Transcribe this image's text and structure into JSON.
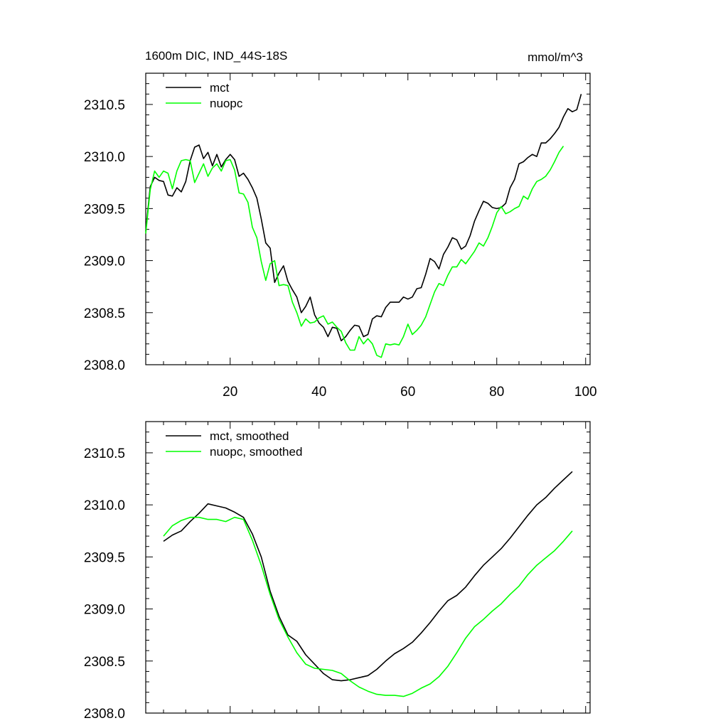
{
  "colors": {
    "mct": "#000000",
    "nuopc": "#00ff00",
    "axes": "#000000",
    "background": "#ffffff"
  },
  "chart_data": [
    {
      "type": "line",
      "title": "1600m DIC, IND_44S-18S",
      "units": "mmol/m^3",
      "xlabel": "",
      "ylabel": "",
      "xlim": [
        1,
        101
      ],
      "ylim": [
        2308.0,
        2310.8
      ],
      "xticks": [
        20,
        40,
        60,
        80,
        100
      ],
      "xtick_labels": [
        "20",
        "40",
        "60",
        "80",
        "100"
      ],
      "yticks": [
        2308.0,
        2308.5,
        2309.0,
        2309.5,
        2310.0,
        2310.5
      ],
      "ytick_labels": [
        "2308.0",
        "2308.5",
        "2309.0",
        "2309.5",
        "2310.0",
        "2310.5"
      ],
      "grid": false,
      "legend": "top-left",
      "series": [
        {
          "name": "mct",
          "color": "#000000",
          "x": [
            1,
            2,
            3,
            4,
            5,
            6,
            7,
            8,
            9,
            10,
            11,
            12,
            13,
            14,
            15,
            16,
            17,
            18,
            19,
            20,
            21,
            22,
            23,
            24,
            25,
            26,
            27,
            28,
            29,
            30,
            31,
            32,
            33,
            34,
            35,
            36,
            37,
            38,
            39,
            40,
            41,
            42,
            43,
            44,
            45,
            46,
            47,
            48,
            49,
            50,
            51,
            52,
            53,
            54,
            55,
            56,
            57,
            58,
            59,
            60,
            61,
            62,
            63,
            64,
            65,
            66,
            67,
            68,
            69,
            70,
            71,
            72,
            73,
            74,
            75,
            76,
            77,
            78,
            79,
            80,
            81,
            82,
            83,
            84,
            85,
            86,
            87,
            88,
            89,
            90,
            91,
            92,
            93,
            94,
            95,
            96,
            97,
            98,
            99,
            100,
            101
          ],
          "y": [
            2309.28,
            2309.71,
            2309.8,
            2309.77,
            2309.76,
            2309.63,
            2309.62,
            2309.7,
            2309.66,
            2309.76,
            2309.96,
            2310.09,
            2310.11,
            2309.98,
            2310.04,
            2309.91,
            2310.02,
            2309.9,
            2309.97,
            2310.02,
            2309.97,
            2309.81,
            2309.84,
            2309.78,
            2309.7,
            2309.6,
            2309.4,
            2309.17,
            2309.12,
            2308.79,
            2308.88,
            2308.95,
            2308.8,
            2308.72,
            2308.65,
            2308.5,
            2308.56,
            2308.65,
            2308.48,
            2308.4,
            2308.36,
            2308.27,
            2308.36,
            2308.35,
            2308.23,
            2308.27,
            2308.33,
            2308.38,
            2308.37,
            2308.27,
            2308.29,
            2308.44,
            2308.47,
            2308.46,
            2308.55,
            2308.6,
            2308.6,
            2308.6,
            2308.65,
            2308.63,
            2308.65,
            2308.73,
            2308.74,
            2308.87,
            2309.02,
            2308.99,
            2308.92,
            2309.06,
            2309.13,
            2309.22,
            2309.2,
            2309.11,
            2309.14,
            2309.24,
            2309.38,
            2309.48,
            2309.57,
            2309.55,
            2309.51,
            2309.5,
            2309.51,
            2309.55,
            2309.7,
            2309.78,
            2309.93,
            2309.95,
            2309.99,
            2310.02,
            2310.0,
            2310.13,
            2310.13,
            2310.17,
            2310.22,
            2310.28,
            2310.38,
            2310.46,
            2310.43,
            2310.45,
            2310.6,
            null,
            null
          ]
        },
        {
          "name": "nuopc",
          "color": "#00ff00",
          "x": [
            1,
            2,
            3,
            4,
            5,
            6,
            7,
            8,
            9,
            10,
            11,
            12,
            13,
            14,
            15,
            16,
            17,
            18,
            19,
            20,
            21,
            22,
            23,
            24,
            25,
            26,
            27,
            28,
            29,
            30,
            31,
            32,
            33,
            34,
            35,
            36,
            37,
            38,
            39,
            40,
            41,
            42,
            43,
            44,
            45,
            46,
            47,
            48,
            49,
            50,
            51,
            52,
            53,
            54,
            55,
            56,
            57,
            58,
            59,
            60,
            61,
            62,
            63,
            64,
            65,
            66,
            67,
            68,
            69,
            70,
            71,
            72,
            73,
            74,
            75,
            76,
            77,
            78,
            79,
            80,
            81,
            82,
            83,
            84,
            85,
            86,
            87,
            88,
            89,
            90,
            91,
            92,
            93,
            94,
            95,
            96,
            97,
            98,
            99,
            100,
            101
          ],
          "y": [
            2309.26,
            2309.68,
            2309.86,
            2309.8,
            2309.86,
            2309.84,
            2309.69,
            2309.86,
            2309.96,
            2309.97,
            2309.96,
            2309.75,
            2309.84,
            2309.93,
            2309.81,
            2309.89,
            2309.93,
            2309.86,
            2309.96,
            2309.97,
            2309.87,
            2309.65,
            2309.64,
            2309.56,
            2309.32,
            2309.22,
            2308.99,
            2308.81,
            2308.97,
            2309.0,
            2308.76,
            2308.77,
            2308.76,
            2308.6,
            2308.5,
            2308.37,
            2308.44,
            2308.4,
            2308.41,
            2308.45,
            2308.47,
            2308.39,
            2308.41,
            2308.36,
            2308.32,
            2308.21,
            2308.14,
            2308.14,
            2308.27,
            2308.2,
            2308.25,
            2308.2,
            2308.09,
            2308.07,
            2308.2,
            2308.19,
            2308.2,
            2308.19,
            2308.27,
            2308.39,
            2308.29,
            2308.33,
            2308.38,
            2308.46,
            2308.58,
            2308.7,
            2308.78,
            2308.76,
            2308.86,
            2308.94,
            2308.94,
            2309.01,
            2308.97,
            2309.03,
            2309.09,
            2309.17,
            2309.14,
            2309.22,
            2309.33,
            2309.46,
            2309.52,
            2309.45,
            2309.47,
            2309.5,
            2309.52,
            2309.62,
            2309.59,
            2309.69,
            2309.76,
            2309.78,
            2309.81,
            2309.87,
            2309.95,
            2310.04,
            2310.1,
            null,
            null,
            null,
            null,
            null,
            null
          ]
        }
      ]
    },
    {
      "type": "line",
      "title": "",
      "xlabel": "",
      "ylabel": "",
      "xlim": [
        1,
        101
      ],
      "ylim": [
        2308.0,
        2310.8
      ],
      "xticks": [
        20,
        40,
        60,
        80,
        100
      ],
      "yticks": [
        2308.0,
        2308.5,
        2309.0,
        2309.5,
        2310.0,
        2310.5
      ],
      "ytick_labels": [
        "2308.0",
        "2308.5",
        "2309.0",
        "2309.5",
        "2310.0",
        "2310.5"
      ],
      "grid": false,
      "legend": "top-left",
      "series": [
        {
          "name": "mct, smoothed",
          "color": "#000000",
          "x": [
            5,
            7,
            9,
            11,
            13,
            15,
            17,
            19,
            21,
            23,
            25,
            27,
            29,
            31,
            33,
            35,
            37,
            39,
            41,
            43,
            45,
            47,
            49,
            51,
            53,
            55,
            57,
            59,
            61,
            63,
            65,
            67,
            69,
            71,
            73,
            75,
            77,
            79,
            81,
            83,
            85,
            87,
            89,
            91,
            93,
            95,
            97
          ],
          "y": [
            2309.65,
            2309.71,
            2309.75,
            2309.84,
            2309.92,
            2310.01,
            2309.99,
            2309.97,
            2309.93,
            2309.88,
            2309.72,
            2309.5,
            2309.17,
            2308.93,
            2308.75,
            2308.69,
            2308.56,
            2308.47,
            2308.38,
            2308.32,
            2308.31,
            2308.32,
            2308.34,
            2308.36,
            2308.42,
            2308.5,
            2308.57,
            2308.62,
            2308.68,
            2308.77,
            2308.87,
            2308.98,
            2309.08,
            2309.13,
            2309.21,
            2309.32,
            2309.42,
            2309.5,
            2309.58,
            2309.68,
            2309.79,
            2309.9,
            2310.0,
            2310.07,
            2310.16,
            2310.24,
            2310.32
          ]
        },
        {
          "name": "nuopc, smoothed",
          "color": "#00ff00",
          "x": [
            5,
            7,
            9,
            11,
            13,
            15,
            17,
            19,
            21,
            23,
            25,
            27,
            29,
            31,
            33,
            35,
            37,
            39,
            41,
            43,
            45,
            47,
            49,
            51,
            53,
            55,
            57,
            59,
            61,
            63,
            65,
            67,
            69,
            71,
            73,
            75,
            77,
            79,
            81,
            83,
            85,
            87,
            89,
            91,
            93,
            95,
            97
          ],
          "y": [
            2309.7,
            2309.8,
            2309.85,
            2309.88,
            2309.88,
            2309.86,
            2309.86,
            2309.84,
            2309.88,
            2309.86,
            2309.66,
            2309.42,
            2309.14,
            2308.9,
            2308.73,
            2308.58,
            2308.47,
            2308.43,
            2308.42,
            2308.41,
            2308.38,
            2308.31,
            2308.25,
            2308.21,
            2308.18,
            2308.17,
            2308.17,
            2308.16,
            2308.19,
            2308.24,
            2308.28,
            2308.35,
            2308.45,
            2308.58,
            2308.72,
            2308.83,
            2308.9,
            2308.98,
            2309.05,
            2309.14,
            2309.22,
            2309.33,
            2309.42,
            2309.49,
            2309.56,
            2309.65,
            2309.75
          ]
        }
      ]
    }
  ]
}
